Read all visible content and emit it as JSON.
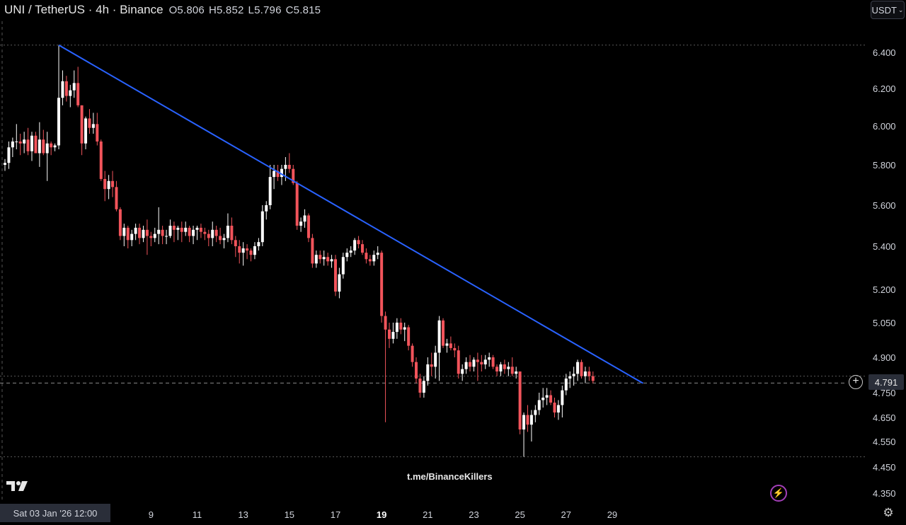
{
  "header": {
    "title": "UNI / TetherUS · 4h · Binance",
    "open": "O5.806",
    "high": "H5.852",
    "low": "L5.796",
    "close": "C5.815"
  },
  "currency_selector": "USDT",
  "current_price_label": "4.791",
  "crosshair_date": "Sat 03 Jan '26   12:00",
  "watermark": "t.me/BinanceKillers",
  "colors": {
    "up": "#ffffff",
    "down": "#f2545b",
    "trendline": "#2962ff",
    "background": "#000000"
  },
  "chart_data": {
    "type": "candlestick",
    "symbol": "UNI/USDT",
    "interval": "4h",
    "exchange": "Binance",
    "y_ticks": [
      6.4,
      6.2,
      6.0,
      5.8,
      5.6,
      5.4,
      5.2,
      5.05,
      4.9,
      4.75,
      4.65,
      4.55,
      4.45,
      4.35
    ],
    "y_tick_labels": [
      "6.400",
      "6.200",
      "6.000",
      "5.800",
      "5.600",
      "5.400",
      "5.200",
      "5.050",
      "4.900",
      "4.750",
      "4.650",
      "4.550",
      "4.450",
      "4.350"
    ],
    "x_ticks": [
      {
        "label": "9",
        "index": 38
      },
      {
        "label": "11",
        "index": 50
      },
      {
        "label": "13",
        "index": 62
      },
      {
        "label": "15",
        "index": 74
      },
      {
        "label": "17",
        "index": 86
      },
      {
        "label": "19",
        "index": 98,
        "bold": true
      },
      {
        "label": "21",
        "index": 110
      },
      {
        "label": "23",
        "index": 122
      },
      {
        "label": "25",
        "index": 134
      },
      {
        "label": "27",
        "index": 146
      },
      {
        "label": "29",
        "index": 158
      }
    ],
    "high_line_price": 6.44,
    "low_line_price": 4.49,
    "last_price": 4.791,
    "trendline": {
      "start": {
        "index": 14,
        "price": 6.44
      },
      "end": {
        "index": 166,
        "price": 4.79
      },
      "label": ""
    },
    "candles": [
      [
        5.8,
        5.83,
        5.77,
        5.81
      ],
      [
        5.81,
        5.92,
        5.78,
        5.89
      ],
      [
        5.89,
        5.94,
        5.84,
        5.92
      ],
      [
        5.92,
        6.01,
        5.88,
        5.92
      ],
      [
        5.92,
        5.96,
        5.85,
        5.91
      ],
      [
        5.91,
        5.97,
        5.86,
        5.93
      ],
      [
        5.93,
        5.99,
        5.85,
        5.87
      ],
      [
        5.87,
        5.97,
        5.82,
        5.95
      ],
      [
        5.95,
        5.97,
        5.86,
        5.86
      ],
      [
        5.86,
        6.02,
        5.79,
        5.93
      ],
      [
        5.93,
        5.98,
        5.85,
        5.86
      ],
      [
        5.86,
        5.97,
        5.72,
        5.91
      ],
      [
        5.91,
        5.92,
        5.85,
        5.89
      ],
      [
        5.89,
        5.91,
        5.87,
        5.9
      ],
      [
        5.9,
        6.44,
        5.88,
        6.15
      ],
      [
        6.15,
        6.3,
        6.11,
        6.24
      ],
      [
        6.24,
        6.27,
        6.13,
        6.16
      ],
      [
        6.16,
        6.22,
        6.1,
        6.19
      ],
      [
        6.19,
        6.3,
        6.15,
        6.23
      ],
      [
        6.23,
        6.32,
        6.1,
        6.11
      ],
      [
        6.11,
        6.11,
        5.85,
        5.91
      ],
      [
        5.91,
        6.05,
        5.88,
        6.04
      ],
      [
        6.04,
        6.09,
        5.96,
        5.99
      ],
      [
        5.99,
        6.07,
        5.96,
        6.01
      ],
      [
        6.01,
        6.07,
        5.9,
        5.92
      ],
      [
        5.92,
        5.93,
        5.72,
        5.73
      ],
      [
        5.73,
        5.77,
        5.62,
        5.68
      ],
      [
        5.68,
        5.75,
        5.63,
        5.72
      ],
      [
        5.72,
        5.77,
        5.64,
        5.69
      ],
      [
        5.69,
        5.72,
        5.57,
        5.58
      ],
      [
        5.58,
        5.59,
        5.43,
        5.45
      ],
      [
        5.45,
        5.51,
        5.4,
        5.49
      ],
      [
        5.49,
        5.5,
        5.39,
        5.43
      ],
      [
        5.43,
        5.48,
        5.4,
        5.46
      ],
      [
        5.46,
        5.51,
        5.43,
        5.49
      ],
      [
        5.49,
        5.51,
        5.41,
        5.44
      ],
      [
        5.44,
        5.5,
        5.42,
        5.48
      ],
      [
        5.48,
        5.53,
        5.36,
        5.45
      ],
      [
        5.45,
        5.47,
        5.4,
        5.44
      ],
      [
        5.44,
        5.49,
        5.42,
        5.46
      ],
      [
        5.46,
        5.59,
        5.41,
        5.48
      ],
      [
        5.48,
        5.5,
        5.41,
        5.45
      ],
      [
        5.45,
        5.48,
        5.41,
        5.45
      ],
      [
        5.45,
        5.53,
        5.44,
        5.5
      ],
      [
        5.5,
        5.52,
        5.42,
        5.48
      ],
      [
        5.48,
        5.5,
        5.43,
        5.49
      ],
      [
        5.49,
        5.52,
        5.42,
        5.47
      ],
      [
        5.47,
        5.52,
        5.45,
        5.49
      ],
      [
        5.49,
        5.5,
        5.42,
        5.45
      ],
      [
        5.45,
        5.5,
        5.41,
        5.48
      ],
      [
        5.48,
        5.5,
        5.43,
        5.49
      ],
      [
        5.49,
        5.51,
        5.44,
        5.47
      ],
      [
        5.47,
        5.49,
        5.43,
        5.46
      ],
      [
        5.46,
        5.48,
        5.4,
        5.44
      ],
      [
        5.44,
        5.52,
        5.4,
        5.48
      ],
      [
        5.48,
        5.5,
        5.42,
        5.45
      ],
      [
        5.45,
        5.49,
        5.41,
        5.43
      ],
      [
        5.43,
        5.46,
        5.39,
        5.44
      ],
      [
        5.44,
        5.56,
        5.42,
        5.5
      ],
      [
        5.5,
        5.54,
        5.41,
        5.43
      ],
      [
        5.43,
        5.45,
        5.35,
        5.4
      ],
      [
        5.4,
        5.43,
        5.32,
        5.37
      ],
      [
        5.37,
        5.42,
        5.31,
        5.39
      ],
      [
        5.39,
        5.41,
        5.34,
        5.38
      ],
      [
        5.38,
        5.39,
        5.33,
        5.36
      ],
      [
        5.36,
        5.42,
        5.34,
        5.4
      ],
      [
        5.4,
        5.44,
        5.38,
        5.42
      ],
      [
        5.42,
        5.6,
        5.4,
        5.57
      ],
      [
        5.57,
        5.62,
        5.53,
        5.6
      ],
      [
        5.6,
        5.8,
        5.58,
        5.74
      ],
      [
        5.74,
        5.8,
        5.68,
        5.77
      ],
      [
        5.77,
        5.8,
        5.72,
        5.74
      ],
      [
        5.74,
        5.8,
        5.7,
        5.78
      ],
      [
        5.78,
        5.84,
        5.72,
        5.8
      ],
      [
        5.8,
        5.86,
        5.76,
        5.78
      ],
      [
        5.78,
        5.8,
        5.7,
        5.71
      ],
      [
        5.71,
        5.72,
        5.48,
        5.5
      ],
      [
        5.5,
        5.54,
        5.47,
        5.52
      ],
      [
        5.52,
        5.58,
        5.49,
        5.55
      ],
      [
        5.55,
        5.56,
        5.42,
        5.44
      ],
      [
        5.44,
        5.46,
        5.3,
        5.32
      ],
      [
        5.32,
        5.38,
        5.3,
        5.36
      ],
      [
        5.36,
        5.38,
        5.32,
        5.34
      ],
      [
        5.34,
        5.38,
        5.31,
        5.35
      ],
      [
        5.35,
        5.37,
        5.31,
        5.33
      ],
      [
        5.33,
        5.36,
        5.3,
        5.34
      ],
      [
        5.34,
        5.36,
        5.17,
        5.19
      ],
      [
        5.19,
        5.3,
        5.16,
        5.27
      ],
      [
        5.27,
        5.37,
        5.25,
        5.35
      ],
      [
        5.35,
        5.39,
        5.33,
        5.37
      ],
      [
        5.37,
        5.4,
        5.35,
        5.38
      ],
      [
        5.38,
        5.44,
        5.36,
        5.43
      ],
      [
        5.43,
        5.45,
        5.39,
        5.41
      ],
      [
        5.41,
        5.43,
        5.36,
        5.37
      ],
      [
        5.37,
        5.39,
        5.32,
        5.34
      ],
      [
        5.34,
        5.36,
        5.31,
        5.33
      ],
      [
        5.33,
        5.38,
        5.31,
        5.36
      ],
      [
        5.36,
        5.4,
        5.34,
        5.37
      ],
      [
        5.37,
        5.38,
        5.05,
        5.08
      ],
      [
        5.08,
        5.1,
        4.63,
        5.02
      ],
      [
        5.02,
        5.05,
        4.94,
        4.98
      ],
      [
        4.98,
        5.05,
        4.96,
        5.01
      ],
      [
        5.01,
        5.07,
        4.98,
        5.05
      ],
      [
        5.05,
        5.07,
        5.0,
        5.02
      ],
      [
        5.02,
        5.05,
        4.97,
        5.03
      ],
      [
        5.03,
        5.04,
        4.93,
        4.95
      ],
      [
        4.95,
        4.96,
        4.86,
        4.88
      ],
      [
        4.88,
        4.9,
        4.79,
        4.81
      ],
      [
        4.81,
        4.83,
        4.73,
        4.75
      ],
      [
        4.75,
        4.82,
        4.73,
        4.8
      ],
      [
        4.8,
        4.9,
        4.78,
        4.87
      ],
      [
        4.87,
        4.92,
        4.82,
        4.86
      ],
      [
        4.86,
        4.95,
        4.81,
        4.92
      ],
      [
        4.92,
        5.08,
        4.8,
        5.06
      ],
      [
        5.06,
        5.07,
        4.94,
        4.95
      ],
      [
        4.95,
        4.98,
        4.92,
        4.96
      ],
      [
        4.96,
        4.99,
        4.93,
        4.94
      ],
      [
        4.94,
        4.96,
        4.9,
        4.93
      ],
      [
        4.93,
        4.95,
        4.81,
        4.83
      ],
      [
        4.83,
        4.87,
        4.8,
        4.85
      ],
      [
        4.85,
        4.9,
        4.83,
        4.88
      ],
      [
        4.88,
        4.91,
        4.84,
        4.86
      ],
      [
        4.86,
        4.9,
        4.84,
        4.89
      ],
      [
        4.89,
        4.92,
        4.8,
        4.88
      ],
      [
        4.88,
        4.91,
        4.84,
        4.87
      ],
      [
        4.87,
        4.91,
        4.85,
        4.89
      ],
      [
        4.89,
        4.92,
        4.86,
        4.9
      ],
      [
        4.9,
        4.91,
        4.85,
        4.86
      ],
      [
        4.86,
        4.87,
        4.82,
        4.84
      ],
      [
        4.84,
        4.88,
        4.82,
        4.87
      ],
      [
        4.87,
        4.89,
        4.83,
        4.85
      ],
      [
        4.85,
        4.88,
        4.82,
        4.86
      ],
      [
        4.86,
        4.9,
        4.82,
        4.83
      ],
      [
        4.83,
        4.86,
        4.81,
        4.84
      ],
      [
        4.84,
        4.84,
        4.58,
        4.6
      ],
      [
        4.6,
        4.67,
        4.49,
        4.66
      ],
      [
        4.66,
        4.7,
        4.59,
        4.62
      ],
      [
        4.62,
        4.68,
        4.55,
        4.66
      ],
      [
        4.66,
        4.7,
        4.63,
        4.68
      ],
      [
        4.68,
        4.75,
        4.66,
        4.72
      ],
      [
        4.72,
        4.77,
        4.69,
        4.73
      ],
      [
        4.73,
        4.77,
        4.7,
        4.74
      ],
      [
        4.74,
        4.76,
        4.7,
        4.71
      ],
      [
        4.71,
        4.73,
        4.65,
        4.67
      ],
      [
        4.67,
        4.72,
        4.64,
        4.7
      ],
      [
        4.7,
        4.78,
        4.65,
        4.76
      ],
      [
        4.76,
        4.83,
        4.74,
        4.81
      ],
      [
        4.81,
        4.84,
        4.77,
        4.82
      ],
      [
        4.82,
        4.86,
        4.78,
        4.83
      ],
      [
        4.83,
        4.89,
        4.8,
        4.88
      ],
      [
        4.88,
        4.89,
        4.81,
        4.82
      ],
      [
        4.82,
        4.86,
        4.79,
        4.84
      ],
      [
        4.84,
        4.86,
        4.8,
        4.82
      ],
      [
        4.82,
        4.84,
        4.79,
        4.8
      ]
    ]
  }
}
